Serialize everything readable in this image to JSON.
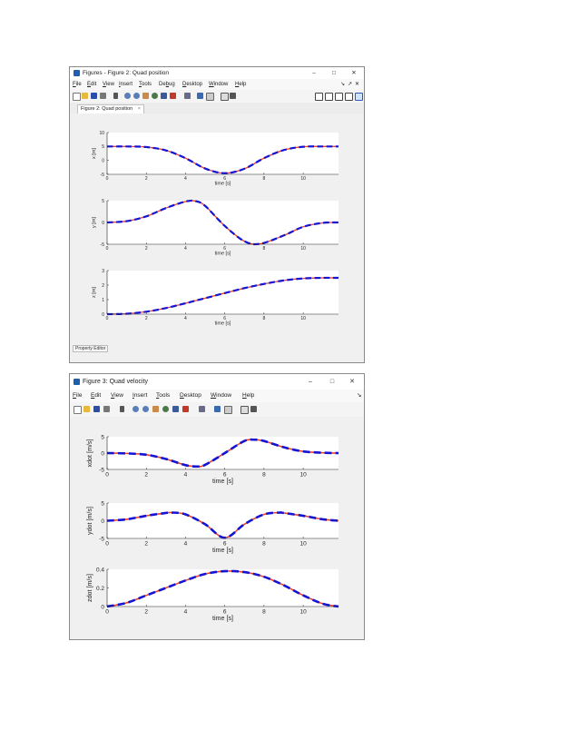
{
  "figure2": {
    "title": "Figures - Figure 2: Quad position",
    "window_controls": [
      "–",
      "□",
      "✕"
    ],
    "menu": [
      {
        "label": "File",
        "key": "F"
      },
      {
        "label": "Edit",
        "key": "E"
      },
      {
        "label": "View",
        "key": "V"
      },
      {
        "label": "Insert",
        "key": "I"
      },
      {
        "label": "Tools",
        "key": "T"
      },
      {
        "label": "Debug",
        "key": "b"
      },
      {
        "label": "Desktop",
        "key": "D"
      },
      {
        "label": "Window",
        "key": "W"
      },
      {
        "label": "Help",
        "key": "H"
      }
    ],
    "menu_right_icons": [
      "↘",
      "↗",
      "✕"
    ],
    "tab_label": "Figure 2: Quad position",
    "tab_close": "×",
    "status_label": "Property Editor",
    "plots": [
      {
        "ylabel": "x [m]",
        "xlabel": "time [s]",
        "yticks": [
          "10",
          "5",
          "0",
          "-5"
        ],
        "xticks": [
          "0",
          "2",
          "4",
          "6",
          "8",
          "10"
        ]
      },
      {
        "ylabel": "y [m]",
        "xlabel": "time [s]",
        "yticks": [
          "5",
          "0",
          "-5"
        ],
        "xticks": [
          "0",
          "2",
          "4",
          "6",
          "8",
          "10"
        ]
      },
      {
        "ylabel": "z [m]",
        "xlabel": "time [s]",
        "yticks": [
          "3",
          "2",
          "1",
          "0"
        ],
        "xticks": [
          "0",
          "2",
          "4",
          "6",
          "8",
          "10"
        ]
      }
    ]
  },
  "figure3": {
    "title": "Figure 3: Quad velocity",
    "window_controls": [
      "–",
      "□",
      "✕"
    ],
    "menu": [
      {
        "label": "File",
        "key": "F"
      },
      {
        "label": "Edit",
        "key": "E"
      },
      {
        "label": "View",
        "key": "V"
      },
      {
        "label": "Insert",
        "key": "I"
      },
      {
        "label": "Tools",
        "key": "T"
      },
      {
        "label": "Desktop",
        "key": "D"
      },
      {
        "label": "Window",
        "key": "W"
      },
      {
        "label": "Help",
        "key": "H"
      }
    ],
    "menu_right_icons": [
      "↘"
    ],
    "plots": [
      {
        "ylabel": "xdot [m/s]",
        "xlabel": "time [s]",
        "yticks": [
          "5",
          "0",
          "-5"
        ],
        "xticks": [
          "0",
          "2",
          "4",
          "6",
          "8",
          "10"
        ]
      },
      {
        "ylabel": "ydot [m/s]",
        "xlabel": "time [s]",
        "yticks": [
          "5",
          "0",
          "-5"
        ],
        "xticks": [
          "0",
          "2",
          "4",
          "6",
          "8",
          "10"
        ]
      },
      {
        "ylabel": "zdot [m/s]",
        "xlabel": "time [s]",
        "yticks": [
          "0.4",
          "0.2",
          "0"
        ],
        "xticks": [
          "0",
          "2",
          "4",
          "6",
          "8",
          "10"
        ]
      }
    ]
  },
  "colors": {
    "desired_line": "#e8412c",
    "actual_line": "#1414d2",
    "axes_bg": "#ffffff",
    "figure_bg": "#f0f0f0"
  },
  "chart_data": [
    {
      "type": "line",
      "xlabel": "time [s]",
      "ylabel": "x [m]",
      "xlim": [
        0,
        11.8
      ],
      "ylim": [
        -5,
        10
      ],
      "grid": false,
      "x": [
        0,
        1,
        2,
        3,
        4,
        5,
        6,
        7,
        8,
        9,
        10,
        11,
        11.8
      ],
      "series": [
        {
          "values": [
            5,
            5,
            4.8,
            3.6,
            0.8,
            -2.9,
            -4.6,
            -3.0,
            0.8,
            3.7,
            4.9,
            5,
            5
          ]
        },
        {
          "values": [
            5,
            5,
            4.8,
            3.6,
            0.8,
            -2.9,
            -4.6,
            -3.0,
            0.8,
            3.7,
            4.9,
            5,
            5
          ]
        }
      ]
    },
    {
      "type": "line",
      "xlabel": "time [s]",
      "ylabel": "y [m]",
      "xlim": [
        0,
        11.8
      ],
      "ylim": [
        -5,
        5
      ],
      "grid": false,
      "x": [
        0,
        1,
        2,
        3,
        4,
        4.5,
        5,
        6,
        7,
        7.8,
        9,
        10,
        11,
        11.8
      ],
      "series": [
        {
          "values": [
            0,
            0.3,
            1.4,
            3.3,
            4.8,
            4.9,
            3.8,
            -0.8,
            -4.3,
            -4.9,
            -3.0,
            -1.0,
            -0.1,
            0
          ]
        },
        {
          "values": [
            0,
            0.3,
            1.4,
            3.3,
            4.8,
            4.9,
            3.8,
            -0.8,
            -4.3,
            -4.9,
            -3.0,
            -1.0,
            -0.1,
            0
          ]
        }
      ]
    },
    {
      "type": "line",
      "xlabel": "time [s]",
      "ylabel": "z [m]",
      "xlim": [
        0,
        11.8
      ],
      "ylim": [
        0,
        3
      ],
      "grid": false,
      "x": [
        0,
        1,
        2,
        3,
        4,
        5,
        6,
        7,
        8,
        9,
        10,
        11,
        11.8
      ],
      "series": [
        {
          "values": [
            0,
            0.03,
            0.17,
            0.42,
            0.75,
            1.1,
            1.45,
            1.79,
            2.08,
            2.32,
            2.46,
            2.5,
            2.5
          ]
        },
        {
          "values": [
            0,
            0.03,
            0.17,
            0.42,
            0.75,
            1.1,
            1.45,
            1.79,
            2.08,
            2.32,
            2.46,
            2.5,
            2.5
          ]
        }
      ]
    },
    {
      "type": "line",
      "xlabel": "time [s]",
      "ylabel": "xdot [m/s]",
      "xlim": [
        0,
        11.8
      ],
      "ylim": [
        -5,
        5
      ],
      "grid": false,
      "x": [
        0,
        1,
        2,
        3,
        4,
        4.6,
        5,
        6,
        7,
        7.5,
        8,
        9,
        10,
        11,
        11.8
      ],
      "series": [
        {
          "values": [
            0,
            -0.1,
            -0.5,
            -1.8,
            -3.7,
            -4.1,
            -3.6,
            0,
            3.7,
            4.1,
            3.7,
            1.8,
            0.5,
            0.1,
            0
          ]
        },
        {
          "values": [
            0,
            -0.1,
            -0.5,
            -1.8,
            -3.7,
            -4.1,
            -3.6,
            0,
            3.7,
            4.1,
            3.7,
            1.8,
            0.5,
            0.1,
            0
          ]
        }
      ]
    },
    {
      "type": "line",
      "xlabel": "time [s]",
      "ylabel": "ydot [m/s]",
      "xlim": [
        0,
        11.8
      ],
      "ylim": [
        -5,
        5
      ],
      "grid": false,
      "x": [
        0,
        1,
        2,
        3,
        3.3,
        4,
        5,
        6,
        7,
        8,
        8.8,
        9,
        10,
        11,
        11.8
      ],
      "series": [
        {
          "values": [
            0,
            0.4,
            1.4,
            2.2,
            2.3,
            1.8,
            -1.0,
            -4.8,
            -1.0,
            1.8,
            2.3,
            2.2,
            1.4,
            0.4,
            0
          ]
        },
        {
          "values": [
            0,
            0.4,
            1.4,
            2.2,
            2.3,
            1.8,
            -1.0,
            -4.8,
            -1.0,
            1.8,
            2.3,
            2.2,
            1.4,
            0.4,
            0
          ]
        }
      ]
    },
    {
      "type": "line",
      "xlabel": "time [s]",
      "ylabel": "zdot [m/s]",
      "xlim": [
        0,
        11.8
      ],
      "ylim": [
        0,
        0.4
      ],
      "grid": false,
      "x": [
        0,
        1,
        2,
        3,
        4,
        5,
        6,
        7,
        8,
        9,
        10,
        11,
        11.8
      ],
      "series": [
        {
          "values": [
            0,
            0.04,
            0.12,
            0.2,
            0.28,
            0.35,
            0.38,
            0.37,
            0.32,
            0.23,
            0.12,
            0.03,
            0
          ]
        },
        {
          "values": [
            0,
            0.04,
            0.12,
            0.2,
            0.28,
            0.35,
            0.38,
            0.37,
            0.32,
            0.23,
            0.12,
            0.03,
            0
          ]
        }
      ]
    }
  ]
}
